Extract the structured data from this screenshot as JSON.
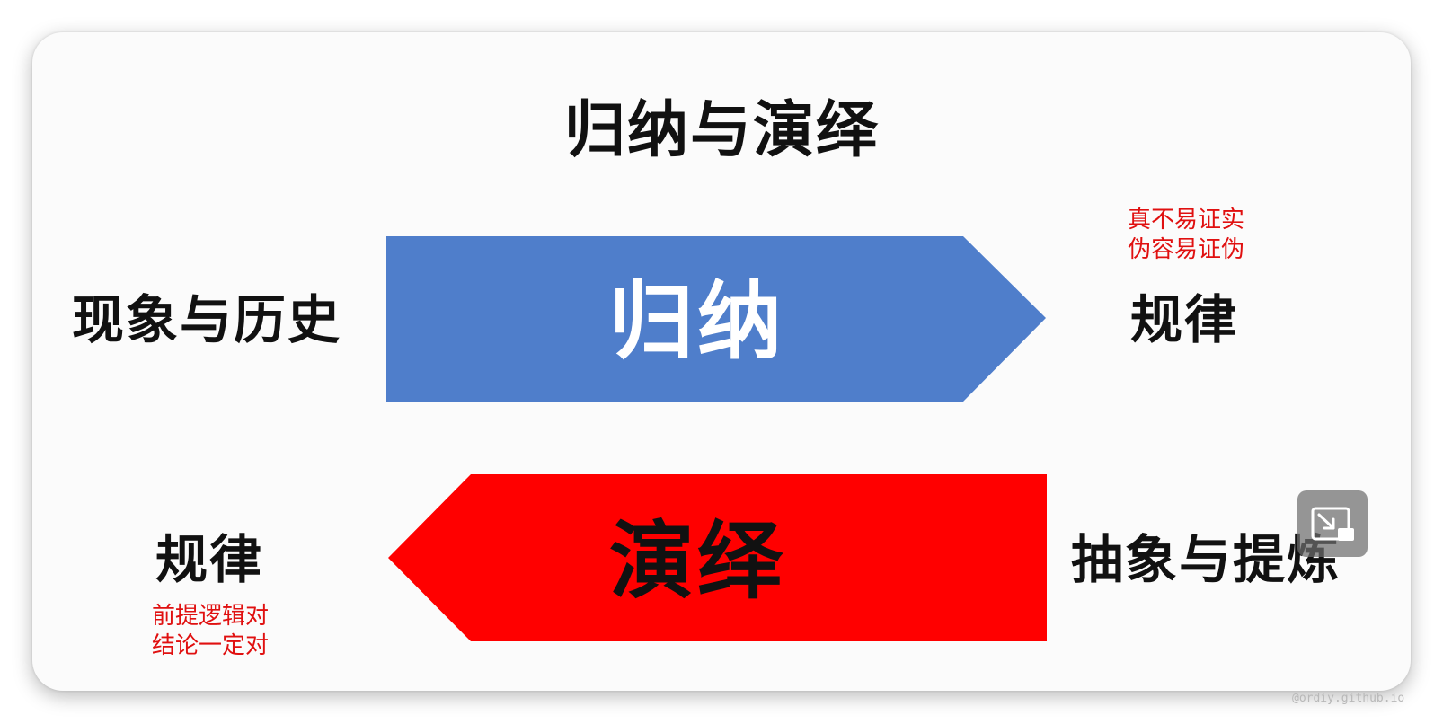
{
  "slide": {
    "title": "归纳与演绎",
    "induction": {
      "label": "归纳",
      "from": "现象与历史",
      "to": "规律",
      "note_line1": "真不易证实",
      "note_line2": "伪容易证伪",
      "color": "#4f7ecb"
    },
    "deduction": {
      "label": "演绎",
      "from": "抽象与提炼",
      "to": "规律",
      "note_line1": "前提逻辑对",
      "note_line2": "结论一定对",
      "color": "#ff0000"
    }
  },
  "overlay": {
    "control_icon": "exit-picture-in-picture-icon"
  },
  "watermark": "@ordiy.github.io"
}
